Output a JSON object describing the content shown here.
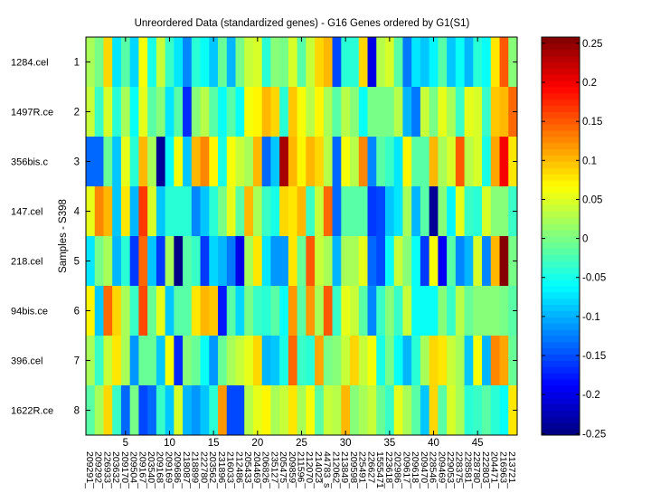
{
  "chart_data": {
    "type": "heatmap",
    "title": "Unreordered Data (standardized genes) - G16 Genes ordered by G1(S1)",
    "ylabel": "Samples - S398",
    "xlabel": "",
    "x_ticks": [
      "5",
      "10",
      "15",
      "20",
      "25",
      "30",
      "35",
      "40",
      "45"
    ],
    "y_ticks": [
      "1",
      "2",
      "3",
      "4",
      "5",
      "6",
      "7",
      "8"
    ],
    "sample_labels": [
      "1284.cel",
      "1497R.ce",
      "356bis.c",
      "147.cel",
      "218.cel",
      "94bis.ce",
      "396.cel",
      "1622R.ce"
    ],
    "gene_labels": [
      "209291_",
      "209292_",
      "226933_",
      "203632_",
      "209170_",
      "209504_",
      "209167_",
      "203540_",
      "209168_",
      "209169_",
      "209686_",
      "218087_",
      "218899_",
      "222780_",
      "203562_",
      "231896_",
      "216033_",
      "212486_",
      "205433_",
      "204469_",
      "206826_",
      "235127_",
      "205475_",
      "209859_",
      "211596_",
      "212070_",
      "214023_",
      "44783_s",
      "212062_",
      "213849_",
      "209598_",
      "225491_",
      "226627_",
      "1555471",
      "223618_",
      "202986_",
      "209617_",
      "209618_",
      "209470_",
      "228546_",
      "209469_",
      "229053_",
      "228375_",
      "228581_",
      "228780_",
      "222803_",
      "204471_",
      "216963_",
      "213721_"
    ],
    "colormap": "jet",
    "clim": [
      -0.252,
      0.258
    ],
    "colorbar_ticks": [
      "-0.25",
      "-0.2",
      "-0.15",
      "-0.1",
      "-0.05",
      "0",
      "0.05",
      "0.1",
      "0.15",
      "0.2",
      "0.25"
    ],
    "values": [
      [
        0.02,
        0.0,
        0.09,
        -0.07,
        -0.02,
        -0.08,
        0.06,
        -0.05,
        0.04,
        -0.03,
        -0.07,
        -0.12,
        -0.04,
        -0.06,
        -0.09,
        -0.005,
        -0.1,
        0.0,
        0.04,
        0.05,
        -0.04,
        0.01,
        0.0,
        0.05,
        -0.015,
        0.04,
        0.09,
        0.1,
        -0.15,
        -0.04,
        -0.04,
        0.09,
        -0.2,
        0.03,
        0.045,
        -0.015,
        -0.13,
        -0.07,
        -0.085,
        -0.065,
        -0.015,
        -0.085,
        -0.06,
        -0.1,
        -0.04,
        -0.06,
        0.075,
        0.15,
        0.01
      ],
      [
        0.04,
        -0.03,
        0.05,
        -0.04,
        0.02,
        -0.06,
        0.055,
        -0.015,
        0.01,
        -0.07,
        -0.015,
        -0.17,
        0.01,
        0.03,
        -0.015,
        -0.06,
        -0.02,
        -0.06,
        0.06,
        0.07,
        0.1,
        0.09,
        -0.04,
        0.095,
        0.06,
        0.03,
        0.07,
        0.02,
        -0.015,
        0.03,
        0.01,
        -0.055,
        0.0,
        0.0,
        0.0,
        0.03,
        -0.1,
        -0.13,
        0.04,
        0.0,
        0.055,
        0.02,
        -0.03,
        0.055,
        0.05,
        -0.03,
        0.095,
        0.1,
        0.14
      ],
      [
        -0.14,
        -0.14,
        -0.005,
        -0.09,
        0.055,
        -0.04,
        0.1,
        0.02,
        -0.24,
        -0.06,
        0.06,
        -0.09,
        0.1,
        0.13,
        0.07,
        -0.05,
        0.06,
        0.04,
        0.02,
        0.1,
        -0.14,
        -0.085,
        0.24,
        0.1,
        0.07,
        0.105,
        0.09,
        0.03,
        -0.14,
        0.065,
        0.03,
        0.125,
        -0.12,
        -0.015,
        -0.03,
        -0.07,
        0.07,
        -0.015,
        -0.015,
        0.1,
        0.02,
        0.05,
        0.15,
        0.03,
        0.05,
        -0.05,
        0.11,
        0.2,
        0.08
      ],
      [
        0.055,
        0.13,
        0.1,
        -0.09,
        0.08,
        -0.1,
        0.17,
        0.05,
        -0.09,
        -0.04,
        -0.04,
        -0.04,
        -0.12,
        -0.09,
        -0.04,
        0.0,
        0.055,
        -0.02,
        0.1,
        0.02,
        -0.03,
        -0.05,
        0.09,
        0.08,
        0.1,
        -0.03,
        0.04,
        0.14,
        -0.14,
        -0.015,
        -0.015,
        -0.015,
        -0.16,
        -0.15,
        -0.09,
        -0.07,
        0.02,
        -0.1,
        -0.02,
        -0.24,
        0.01,
        -0.065,
        0.055,
        -0.03,
        -0.04,
        0.05,
        0.01,
        0.01,
        -0.03
      ],
      [
        -0.07,
        0.0,
        0.02,
        -0.1,
        -0.04,
        -0.16,
        0.14,
        -0.09,
        -0.16,
        0.02,
        -0.25,
        -0.015,
        -0.03,
        -0.16,
        -0.08,
        -0.1,
        -0.13,
        -0.2,
        0.02,
        0.08,
        -0.07,
        -0.11,
        -0.11,
        0.08,
        -0.005,
        0.15,
        0.04,
        0.02,
        -0.1,
        0.02,
        0.02,
        0.055,
        -0.14,
        -0.15,
        -0.06,
        0.04,
        0.01,
        -0.06,
        -0.16,
        0.06,
        -0.19,
        -0.02,
        -0.12,
        -0.1,
        0.05,
        -0.12,
        0.1,
        0.26,
        0.0
      ],
      [
        0.07,
        -0.09,
        0.14,
        0.09,
        0.02,
        -0.03,
        0.16,
        -0.005,
        0.055,
        -0.085,
        -0.015,
        -0.02,
        0.075,
        0.1,
        0.095,
        -0.18,
        -0.015,
        -0.08,
        0.0,
        -0.03,
        -0.04,
        -0.02,
        -0.055,
        0.12,
        -0.02,
        0.12,
        0.02,
        0.15,
        -0.03,
        0.055,
        0.04,
        -0.02,
        -0.12,
        -0.03,
        0.01,
        -0.03,
        0.04,
        -0.055,
        -0.06,
        -0.06,
        0.01,
        -0.03,
        0.03,
        -0.005,
        0.01,
        0.01,
        0.01,
        0.0,
        -0.015
      ],
      [
        0.02,
        -0.03,
        0.04,
        0.075,
        0.02,
        -0.11,
        -0.005,
        -0.005,
        -0.09,
        0.065,
        -0.17,
        0.01,
        -0.005,
        -0.055,
        -0.11,
        -0.005,
        0.02,
        0.04,
        0.055,
        0.09,
        -0.1,
        -0.09,
        -0.05,
        0.14,
        -0.03,
        -0.04,
        0.11,
        0.0,
        0.01,
        0.04,
        0.09,
        0.04,
        0.065,
        -0.05,
        0.0,
        -0.055,
        -0.1,
        -0.04,
        0.02,
        0.09,
        0.08,
        0.04,
        0.02,
        -0.085,
        0.065,
        -0.1,
        0.13,
        0.11,
        -0.005
      ],
      [
        -0.015,
        0.02,
        0.09,
        -0.03,
        -0.14,
        0.0,
        -0.15,
        -0.14,
        -0.03,
        -0.09,
        0.05,
        -0.1,
        -0.11,
        -0.085,
        -0.04,
        0.12,
        -0.15,
        -0.15,
        0.03,
        0.055,
        0.07,
        0.02,
        0.04,
        0.08,
        0.02,
        0.06,
        -0.015,
        0.04,
        0.03,
        0.1,
        0.01,
        0.02,
        0.04,
        -0.005,
        -0.03,
        0.055,
        0.02,
        -0.02,
        -0.085,
        0.09,
        -0.015,
        0.045,
        0.02,
        -0.04,
        -0.03,
        -0.015,
        -0.04,
        -0.055,
        0.08
      ]
    ]
  }
}
